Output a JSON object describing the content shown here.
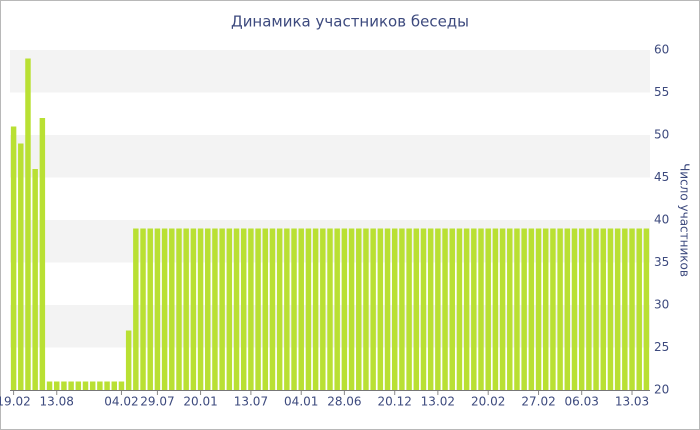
{
  "chart_data": {
    "type": "bar",
    "title": "Динамика участников беседы",
    "y_axis_label": "Число участников",
    "categories": [
      "19.02",
      null,
      null,
      null,
      null,
      null,
      "13.08",
      null,
      null,
      null,
      null,
      null,
      null,
      null,
      null,
      "04.02",
      null,
      null,
      null,
      null,
      "29.07",
      null,
      null,
      null,
      null,
      null,
      "20.01",
      null,
      null,
      null,
      null,
      null,
      null,
      "13.07",
      null,
      null,
      null,
      null,
      null,
      null,
      "04.01",
      null,
      null,
      null,
      null,
      null,
      "28.06",
      null,
      null,
      null,
      null,
      null,
      null,
      "20.12",
      null,
      null,
      null,
      null,
      null,
      "13.02",
      null,
      null,
      null,
      null,
      null,
      null,
      "20.02",
      null,
      null,
      null,
      null,
      null,
      null,
      "27.02",
      null,
      null,
      null,
      null,
      null,
      "06.03",
      null,
      null,
      null,
      null,
      null,
      null,
      "13.03",
      null,
      null
    ],
    "values": [
      51,
      49,
      59,
      46,
      52,
      21,
      21,
      21,
      21,
      21,
      21,
      21,
      21,
      21,
      21,
      21,
      27,
      39,
      39,
      39,
      39,
      39,
      39,
      39,
      39,
      39,
      39,
      39,
      39,
      39,
      39,
      39,
      39,
      39,
      39,
      39,
      39,
      39,
      39,
      39,
      39,
      39,
      39,
      39,
      39,
      39,
      39,
      39,
      39,
      39,
      39,
      39,
      39,
      39,
      39,
      39,
      39,
      39,
      39,
      39,
      39,
      39,
      39,
      39,
      39,
      39,
      39,
      39,
      39,
      39,
      39,
      39,
      39,
      39,
      39,
      39,
      39,
      39,
      39,
      39,
      39,
      39,
      39,
      39,
      39,
      39,
      39,
      39,
      39
    ],
    "color": "#b9e033",
    "ylim": [
      20,
      60
    ],
    "yticks": [
      20,
      25,
      30,
      35,
      40,
      45,
      50,
      55,
      60
    ],
    "y_axis_side": "right",
    "banded_grid": true
  }
}
